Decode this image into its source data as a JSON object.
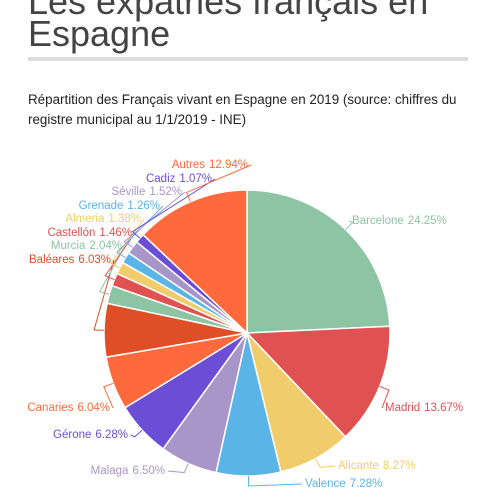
{
  "page": {
    "heading_lines": [
      "Les expatriés français en",
      "Espagne"
    ]
  },
  "chart_data": {
    "type": "pie",
    "title": "Répartition des Français vivant en Espagne en 2019 (source: chiffres du registre municipal au 1/1/2019 - INE)",
    "categories": [
      "Barcelone",
      "Madrid",
      "Alicante",
      "Valence",
      "Malaga",
      "Gérone",
      "Canaries",
      "Baléares",
      "Murcia",
      "Castellón",
      "Almeria",
      "Grenade",
      "Séville",
      "Cadiz",
      "Autres"
    ],
    "values": [
      24.25,
      13.67,
      8.27,
      7.28,
      6.5,
      6.28,
      6.04,
      6.03,
      2.04,
      1.46,
      1.38,
      1.26,
      1.52,
      1.07,
      12.94
    ],
    "value_labels": [
      "24.25%",
      "13.67%",
      "8.27%",
      "7.28%",
      "6.50%",
      "6.28%",
      "6.04%",
      "6.03%",
      "2.04%",
      "1.46%",
      "1.38%",
      "1.26%",
      "1.52%",
      "1.07%",
      "12.94%"
    ],
    "colors": [
      "#8cc4a4",
      "#e05252",
      "#f0cc6a",
      "#5ab4e6",
      "#a996c8",
      "#6a4fd6",
      "#ff6a3d",
      "#e04e28",
      "#8cc4a4",
      "#e05252",
      "#f0cc6a",
      "#5ab4e6",
      "#a996c8",
      "#6a4fd6",
      "#ff6a3d"
    ]
  }
}
